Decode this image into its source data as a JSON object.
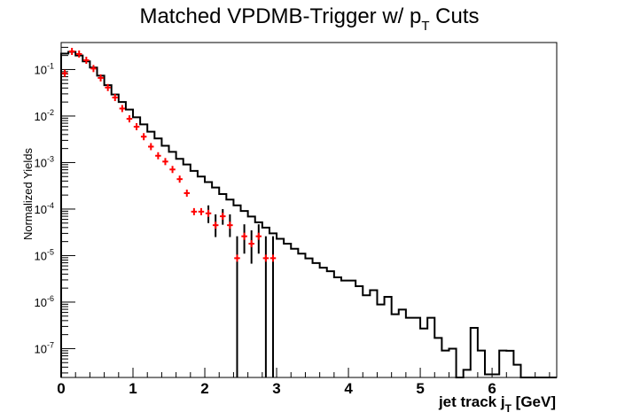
{
  "chart_data": {
    "type": "line",
    "title": {
      "main": "Matched VPDMB-Trigger w/ p",
      "sub": "T",
      "tail": " Cuts"
    },
    "xlabel": {
      "main": "jet track j",
      "sub": "T",
      "tail": " [GeV]"
    },
    "ylabel": "Normalized Yields",
    "xlim": [
      0,
      6.9
    ],
    "ylim_log10": [
      -7.62,
      -0.42
    ],
    "log_y": true,
    "grid": false,
    "x_ticks": [
      {
        "value": 0,
        "label": "0"
      },
      {
        "value": 1,
        "label": "1"
      },
      {
        "value": 2,
        "label": "2"
      },
      {
        "value": 3,
        "label": "3"
      },
      {
        "value": 4,
        "label": "4"
      },
      {
        "value": 5,
        "label": "5"
      },
      {
        "value": 6,
        "label": "6"
      }
    ],
    "y_ticks": [
      {
        "exp": -7,
        "base": "10",
        "sup": "-7"
      },
      {
        "exp": -6,
        "base": "10",
        "sup": "-6"
      },
      {
        "exp": -5,
        "base": "10",
        "sup": "-5"
      },
      {
        "exp": -4,
        "base": "10",
        "sup": "-4"
      },
      {
        "exp": -3,
        "base": "10",
        "sup": "-3"
      },
      {
        "exp": -2,
        "base": "10",
        "sup": "-2"
      },
      {
        "exp": -1,
        "base": "10",
        "sup": "-1"
      }
    ],
    "histogram": {
      "color": "#000000",
      "bin_width": 0.1,
      "bins": [
        {
          "x0": 0.0,
          "x1": 0.1,
          "y": 0.22
        },
        {
          "x0": 0.1,
          "x1": 0.2,
          "y": 0.24
        },
        {
          "x0": 0.2,
          "x1": 0.3,
          "y": 0.2
        },
        {
          "x0": 0.3,
          "x1": 0.4,
          "y": 0.15
        },
        {
          "x0": 0.4,
          "x1": 0.5,
          "y": 0.11
        },
        {
          "x0": 0.5,
          "x1": 0.6,
          "y": 0.074
        },
        {
          "x0": 0.6,
          "x1": 0.7,
          "y": 0.046
        },
        {
          "x0": 0.7,
          "x1": 0.8,
          "y": 0.029
        },
        {
          "x0": 0.8,
          "x1": 0.9,
          "y": 0.02
        },
        {
          "x0": 0.9,
          "x1": 1.0,
          "y": 0.0138
        },
        {
          "x0": 1.0,
          "x1": 1.1,
          "y": 0.0094
        },
        {
          "x0": 1.1,
          "x1": 1.2,
          "y": 0.0066
        },
        {
          "x0": 1.2,
          "x1": 1.3,
          "y": 0.0046
        },
        {
          "x0": 1.3,
          "x1": 1.4,
          "y": 0.0033
        },
        {
          "x0": 1.4,
          "x1": 1.5,
          "y": 0.0023
        },
        {
          "x0": 1.5,
          "x1": 1.6,
          "y": 0.0017
        },
        {
          "x0": 1.6,
          "x1": 1.7,
          "y": 0.0012
        },
        {
          "x0": 1.7,
          "x1": 1.8,
          "y": 0.00091
        },
        {
          "x0": 1.8,
          "x1": 1.9,
          "y": 0.00066
        },
        {
          "x0": 1.9,
          "x1": 2.0,
          "y": 0.0005
        },
        {
          "x0": 2.0,
          "x1": 2.1,
          "y": 0.00038
        },
        {
          "x0": 2.1,
          "x1": 2.2,
          "y": 0.00029
        },
        {
          "x0": 2.2,
          "x1": 2.3,
          "y": 0.00021
        },
        {
          "x0": 2.3,
          "x1": 2.4,
          "y": 0.00016
        },
        {
          "x0": 2.4,
          "x1": 2.5,
          "y": 0.00012
        },
        {
          "x0": 2.5,
          "x1": 2.6,
          "y": 9.1e-05
        },
        {
          "x0": 2.6,
          "x1": 2.7,
          "y": 6.9e-05
        },
        {
          "x0": 2.7,
          "x1": 2.8,
          "y": 5.2e-05
        },
        {
          "x0": 2.8,
          "x1": 2.9,
          "y": 4e-05
        },
        {
          "x0": 2.9,
          "x1": 3.0,
          "y": 3e-05
        },
        {
          "x0": 3.0,
          "x1": 3.1,
          "y": 2.3e-05
        },
        {
          "x0": 3.1,
          "x1": 3.2,
          "y": 1.8e-05
        },
        {
          "x0": 3.2,
          "x1": 3.3,
          "y": 1.4e-05
        },
        {
          "x0": 3.3,
          "x1": 3.4,
          "y": 1.1e-05
        },
        {
          "x0": 3.4,
          "x1": 3.5,
          "y": 8.7e-06
        },
        {
          "x0": 3.5,
          "x1": 3.6,
          "y": 6.9e-06
        },
        {
          "x0": 3.6,
          "x1": 3.7,
          "y": 5.5e-06
        },
        {
          "x0": 3.7,
          "x1": 3.8,
          "y": 4.6e-06
        },
        {
          "x0": 3.8,
          "x1": 3.9,
          "y": 3.4e-06
        },
        {
          "x0": 3.9,
          "x1": 4.0,
          "y": 2.9e-06
        },
        {
          "x0": 4.0,
          "x1": 4.1,
          "y": 2.9e-06
        },
        {
          "x0": 4.1,
          "x1": 4.2,
          "y": 2.2e-06
        },
        {
          "x0": 4.2,
          "x1": 4.3,
          "y": 1.4e-06
        },
        {
          "x0": 4.3,
          "x1": 4.4,
          "y": 1.8e-06
        },
        {
          "x0": 4.4,
          "x1": 4.5,
          "y": 8.9e-07
        },
        {
          "x0": 4.5,
          "x1": 4.6,
          "y": 1.3e-06
        },
        {
          "x0": 4.6,
          "x1": 4.7,
          "y": 5.5e-07
        },
        {
          "x0": 4.7,
          "x1": 4.8,
          "y": 6.9e-07
        },
        {
          "x0": 4.8,
          "x1": 4.9,
          "y": 4.6e-07
        },
        {
          "x0": 4.9,
          "x1": 5.0,
          "y": 4.6e-07
        },
        {
          "x0": 5.0,
          "x1": 5.1,
          "y": 2.7e-07
        },
        {
          "x0": 5.1,
          "x1": 5.2,
          "y": 4.6e-07
        },
        {
          "x0": 5.2,
          "x1": 5.3,
          "y": 1.7e-07
        },
        {
          "x0": 5.3,
          "x1": 5.4,
          "y": 9.1e-08
        },
        {
          "x0": 5.4,
          "x1": 5.5,
          "y": 1e-07
        },
        {
          "x0": 5.5,
          "x1": 5.6,
          "y": 2.3e-08
        },
        {
          "x0": 5.6,
          "x1": 5.7,
          "y": 3.5e-08
        },
        {
          "x0": 5.7,
          "x1": 5.8,
          "y": 2.8e-07
        },
        {
          "x0": 5.8,
          "x1": 5.9,
          "y": 9.1e-08
        },
        {
          "x0": 5.9,
          "x1": 6.0,
          "y": 2.8e-08
        },
        {
          "x0": 6.0,
          "x1": 6.1,
          "y": 2.8e-08
        },
        {
          "x0": 6.1,
          "x1": 6.2,
          "y": 9.1e-08
        },
        {
          "x0": 6.2,
          "x1": 6.3,
          "y": 9e-08
        },
        {
          "x0": 6.3,
          "x1": 6.4,
          "y": 4.5e-08
        }
      ]
    },
    "markers": {
      "color": "#ff0000",
      "xerr": 0.05,
      "points": [
        {
          "x": 0.05,
          "y": 0.083
        },
        {
          "x": 0.15,
          "y": 0.245
        },
        {
          "x": 0.25,
          "y": 0.215
        },
        {
          "x": 0.35,
          "y": 0.158
        },
        {
          "x": 0.45,
          "y": 0.105
        },
        {
          "x": 0.55,
          "y": 0.066
        },
        {
          "x": 0.65,
          "y": 0.041
        },
        {
          "x": 0.75,
          "y": 0.025
        },
        {
          "x": 0.85,
          "y": 0.0145
        },
        {
          "x": 0.95,
          "y": 0.0087
        },
        {
          "x": 1.05,
          "y": 0.0059
        },
        {
          "x": 1.15,
          "y": 0.0036
        },
        {
          "x": 1.25,
          "y": 0.0022
        },
        {
          "x": 1.35,
          "y": 0.0014
        },
        {
          "x": 1.45,
          "y": 0.00105
        },
        {
          "x": 1.55,
          "y": 0.00071
        },
        {
          "x": 1.65,
          "y": 0.00044
        },
        {
          "x": 1.75,
          "y": 0.00022
        },
        {
          "x": 1.85,
          "y": 8.8e-05
        },
        {
          "x": 1.95,
          "y": 8.8e-05
        },
        {
          "x": 2.05,
          "y": 8.1e-05,
          "ylo": 5e-05,
          "yhi": 0.00012
        },
        {
          "x": 2.15,
          "y": 4.5e-05,
          "ylo": 2.5e-05,
          "yhi": 7.7e-05
        },
        {
          "x": 2.25,
          "y": 7e-05,
          "ylo": 4.6e-05,
          "yhi": 0.0001
        },
        {
          "x": 2.35,
          "y": 4.5e-05,
          "ylo": 2.5e-05,
          "yhi": 7.7e-05
        },
        {
          "x": 2.45,
          "y": 8.8e-06,
          "ylo": 1e-09,
          "yhi": 2.6e-05
        },
        {
          "x": 2.55,
          "y": 2.6e-05,
          "ylo": 1.1e-05,
          "yhi": 4.7e-05
        },
        {
          "x": 2.65,
          "y": 1.8e-05,
          "ylo": 6.7e-06,
          "yhi": 3.5e-05
        },
        {
          "x": 2.75,
          "y": 2.6e-05,
          "ylo": 1.1e-05,
          "yhi": 4.7e-05
        },
        {
          "x": 2.85,
          "y": 8.8e-06,
          "ylo": 1e-09,
          "yhi": 2.6e-05
        },
        {
          "x": 2.95,
          "y": 8.8e-06,
          "ylo": 1e-09,
          "yhi": 2.6e-05
        }
      ]
    }
  }
}
